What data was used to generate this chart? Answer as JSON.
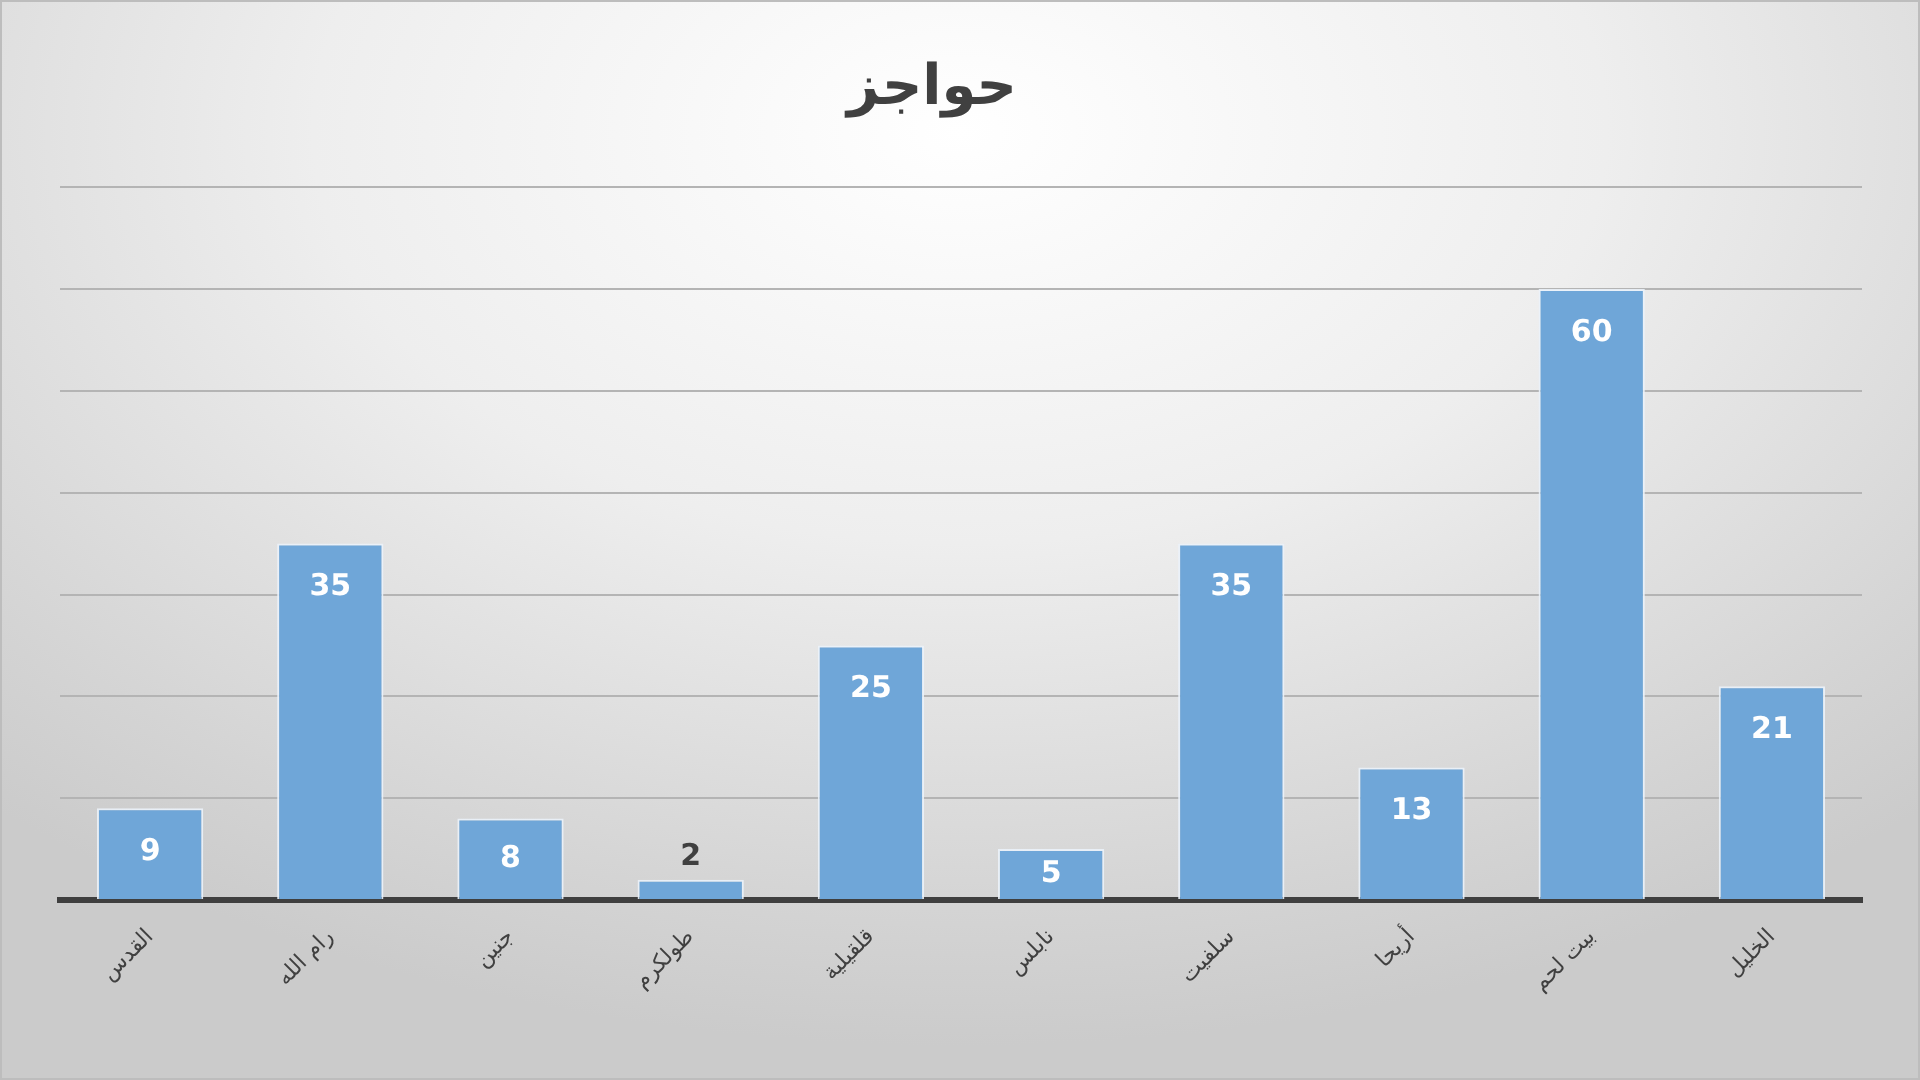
{
  "chart_data": {
    "type": "bar",
    "title": "حواجز",
    "categories": [
      "القدس",
      "رام الله",
      "جنين",
      "طولكرم",
      "قلقيلية",
      "نابلس",
      "سلفيت",
      "أريحا",
      "بيت لحم",
      "الخليل"
    ],
    "values": [
      9,
      35,
      8,
      2,
      25,
      5,
      35,
      13,
      60,
      21
    ],
    "color": "#6fa6d8",
    "ylim": [
      0,
      70
    ],
    "yticks": [
      {
        "value": 0,
        "label": null
      },
      {
        "value": 10,
        "label": null
      },
      {
        "value": 20,
        "label": null
      },
      {
        "value": 30,
        "label": null
      },
      {
        "value": 40,
        "label": null
      },
      {
        "value": 50,
        "label": null
      },
      {
        "value": 60,
        "label": null
      },
      {
        "value": 70,
        "label": null
      }
    ],
    "grid": "y",
    "tick_labels": "x",
    "data_labels": true
  }
}
